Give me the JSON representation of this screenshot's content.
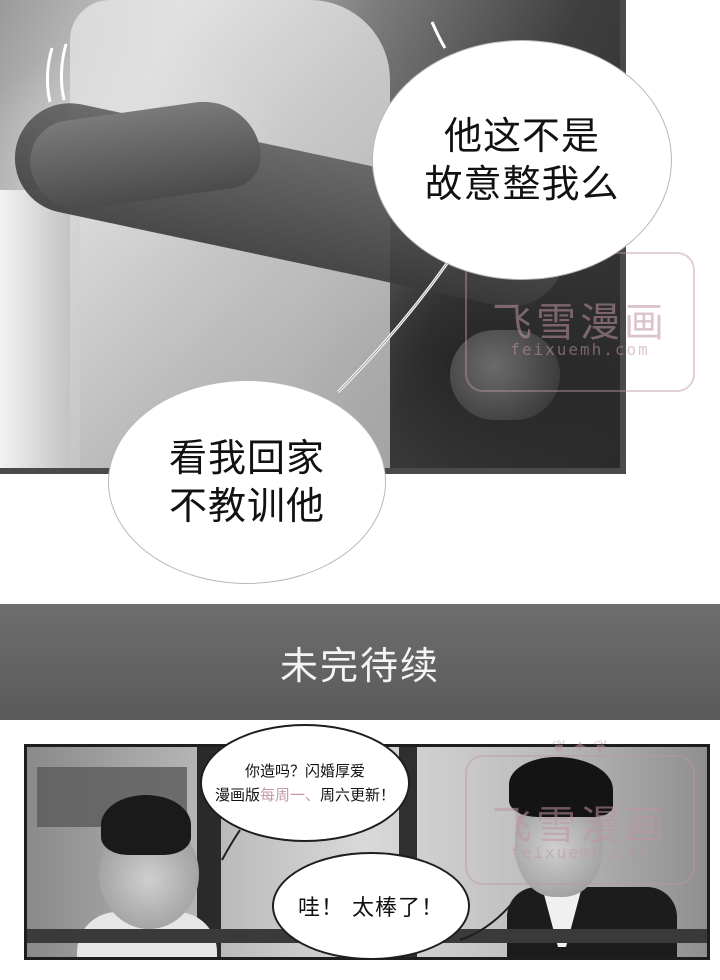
{
  "panel_top": {
    "bubble_1": {
      "line_1": "他这不是",
      "line_2": "故意整我么"
    },
    "bubble_2": {
      "line_1": "看我回家",
      "line_2": "不教训他"
    }
  },
  "watermark": {
    "title": "飞雪漫画",
    "url": "feixuemh.com"
  },
  "banner": {
    "text": "未完待续"
  },
  "panel_bottom": {
    "bubble_3": {
      "line_1": "你造吗？闪婚厚爱",
      "line_2_prefix": "漫画版",
      "line_2_faded": "每周一、",
      "line_2_suffix": "周六更新！"
    },
    "bubble_4": {
      "text": "哇！ 太棒了！"
    }
  },
  "colors": {
    "banner_bg": "#5a5a5a",
    "banner_text": "#f4f4f4",
    "watermark": "#be96a0"
  }
}
